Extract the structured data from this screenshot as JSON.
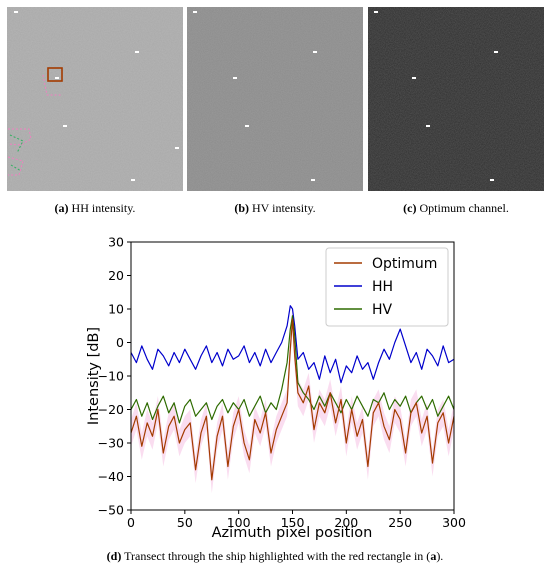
{
  "panels": [
    {
      "letter": "(a)",
      "text": "HH intensity."
    },
    {
      "letter": "(b)",
      "text": "HV intensity."
    },
    {
      "letter": "(c)",
      "text": "Optimum channel."
    }
  ],
  "figure_caption": {
    "letter": "(d)",
    "text": "Transect through the ship highlighted with the red rectangle in (",
    "ref": "a",
    "end": ")."
  },
  "colors": {
    "optimum": "#a33b00",
    "hh": "#0000cc",
    "hv": "#2e6b00",
    "fill": "#f7c6e6",
    "highlight": "#a33b00"
  },
  "chart_data": {
    "type": "line",
    "xlabel": "Azimuth pixel position",
    "ylabel": "Intensity [dB]",
    "xlim": [
      0,
      300
    ],
    "ylim": [
      -50,
      30
    ],
    "xticks": [
      0,
      50,
      100,
      150,
      200,
      250,
      300
    ],
    "yticks": [
      -50,
      -40,
      -30,
      -20,
      -10,
      0,
      10,
      20,
      30
    ],
    "legend": "top-right",
    "grid": false,
    "series": [
      {
        "name": "Optimum",
        "color": "#a33b00",
        "x": [
          0,
          5,
          10,
          15,
          20,
          25,
          30,
          35,
          40,
          45,
          50,
          55,
          60,
          65,
          70,
          75,
          80,
          85,
          90,
          95,
          100,
          105,
          110,
          115,
          120,
          125,
          130,
          135,
          140,
          145,
          148,
          150,
          152,
          155,
          160,
          165,
          170,
          175,
          180,
          185,
          190,
          195,
          200,
          205,
          210,
          215,
          220,
          225,
          230,
          235,
          240,
          245,
          250,
          255,
          260,
          265,
          270,
          275,
          280,
          285,
          290,
          295,
          300
        ],
        "y": [
          -27,
          -22,
          -31,
          -24,
          -28,
          -20,
          -33,
          -25,
          -22,
          -30,
          -26,
          -24,
          -38,
          -27,
          -22,
          -41,
          -28,
          -22,
          -37,
          -25,
          -20,
          -30,
          -35,
          -23,
          -27,
          -21,
          -33,
          -26,
          -22,
          -18,
          -2,
          7,
          -4,
          -15,
          -18,
          -13,
          -26,
          -18,
          -21,
          -15,
          -24,
          -17,
          -30,
          -20,
          -28,
          -23,
          -37,
          -21,
          -18,
          -25,
          -29,
          -20,
          -23,
          -33,
          -21,
          -18,
          -27,
          -22,
          -36,
          -24,
          -21,
          -30,
          -22
        ]
      },
      {
        "name": "HH",
        "color": "#0000cc",
        "x": [
          0,
          5,
          10,
          15,
          20,
          25,
          30,
          35,
          40,
          45,
          50,
          55,
          60,
          65,
          70,
          75,
          80,
          85,
          90,
          95,
          100,
          105,
          110,
          115,
          120,
          125,
          130,
          135,
          140,
          145,
          148,
          150,
          152,
          155,
          160,
          165,
          170,
          175,
          180,
          185,
          190,
          195,
          200,
          205,
          210,
          215,
          220,
          225,
          230,
          235,
          240,
          245,
          250,
          255,
          260,
          265,
          270,
          275,
          280,
          285,
          290,
          295,
          300
        ],
        "y": [
          -3,
          -6,
          -1,
          -5,
          -8,
          -2,
          -4,
          -7,
          -3,
          -6,
          -2,
          -5,
          -8,
          -4,
          -1,
          -6,
          -3,
          -7,
          -2,
          -5,
          -4,
          -1,
          -6,
          -3,
          -7,
          -2,
          -6,
          -3,
          0,
          5,
          11,
          10,
          5,
          -5,
          -3,
          -8,
          -6,
          -11,
          -4,
          -9,
          -5,
          -12,
          -7,
          -9,
          -4,
          -8,
          -6,
          -11,
          -6,
          -2,
          -5,
          0,
          4,
          -1,
          -6,
          -3,
          -8,
          -2,
          -4,
          -7,
          -1,
          -6,
          -5
        ]
      },
      {
        "name": "HV",
        "color": "#2e6b00",
        "x": [
          0,
          5,
          10,
          15,
          20,
          25,
          30,
          35,
          40,
          45,
          50,
          55,
          60,
          65,
          70,
          75,
          80,
          85,
          90,
          95,
          100,
          105,
          110,
          115,
          120,
          125,
          130,
          135,
          140,
          145,
          148,
          150,
          152,
          155,
          160,
          165,
          170,
          175,
          180,
          185,
          190,
          195,
          200,
          205,
          210,
          215,
          220,
          225,
          230,
          235,
          240,
          245,
          250,
          255,
          260,
          265,
          270,
          275,
          280,
          285,
          290,
          295,
          300
        ],
        "y": [
          -20,
          -17,
          -22,
          -18,
          -23,
          -19,
          -16,
          -21,
          -18,
          -24,
          -19,
          -17,
          -22,
          -20,
          -18,
          -23,
          -19,
          -17,
          -21,
          -18,
          -20,
          -17,
          -22,
          -19,
          -16,
          -21,
          -18,
          -20,
          -14,
          -6,
          4,
          8,
          2,
          -12,
          -15,
          -17,
          -20,
          -16,
          -19,
          -15,
          -18,
          -21,
          -17,
          -20,
          -16,
          -19,
          -22,
          -17,
          -18,
          -15,
          -20,
          -17,
          -19,
          -16,
          -21,
          -18,
          -16,
          -20,
          -17,
          -22,
          -19,
          -16,
          -20
        ]
      }
    ]
  }
}
